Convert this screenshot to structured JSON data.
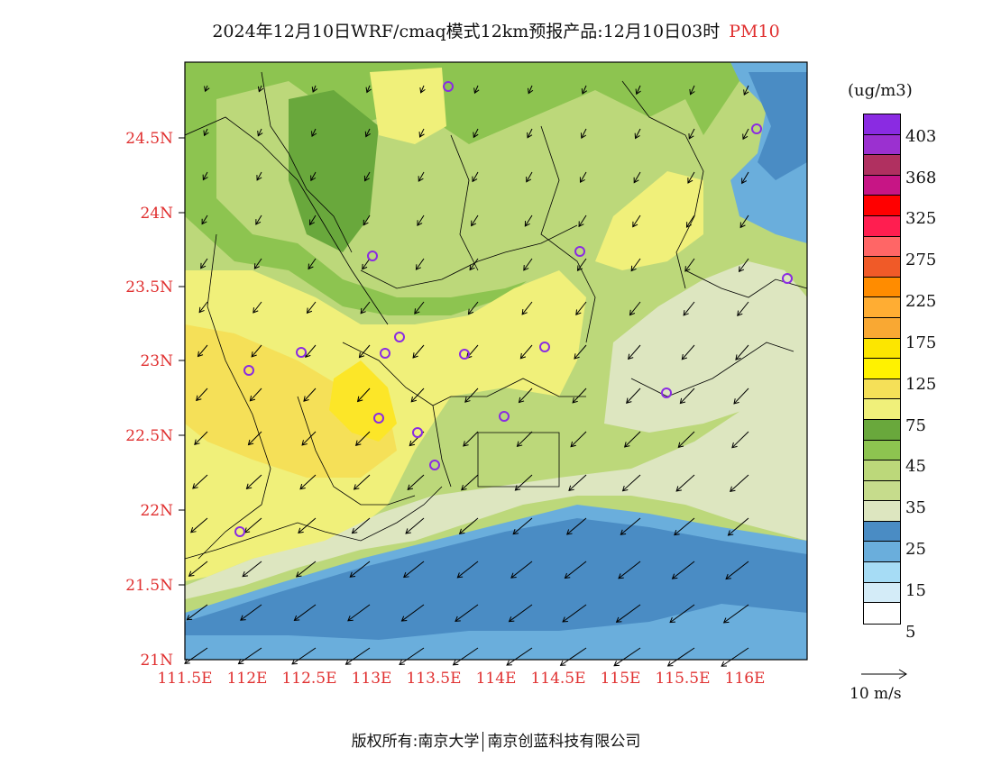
{
  "title": {
    "main": "2024年12月10日WRF/cmaq模式12km预报产品:12月10日03时",
    "pollutant": "PM10"
  },
  "map": {
    "lat_ticks": [
      "24.5N",
      "24N",
      "23.5N",
      "23N",
      "22.5N",
      "22N",
      "21.5N",
      "21N"
    ],
    "lon_ticks": [
      "111.5E",
      "112E",
      "112.5E",
      "113E",
      "113.5E",
      "114E",
      "114.5E",
      "115E",
      "115.5E",
      "116E"
    ],
    "lat_range": [
      21.0,
      25.0
    ],
    "lon_range": [
      111.5,
      116.5
    ],
    "colors": {
      "sea_deep": "#4a8cc4",
      "sea_light": "#6aaedc",
      "c25": "#dde6c0",
      "c35": "#bcd87a",
      "c45": "#8dc450",
      "c45dark": "#69a83c",
      "c75": "#f0f07a",
      "c100": "#f5e058",
      "c125": "#fce628"
    },
    "arrow_color": "#000000",
    "station_color": "#8a2be2"
  },
  "legend": {
    "unit": "(ug/m3)",
    "labels": [
      "403",
      "368",
      "325",
      "275",
      "225",
      "175",
      "125",
      "75",
      "45",
      "35",
      "25",
      "15",
      "5"
    ],
    "colors": [
      "#8a2be2",
      "#9b30d0",
      "#b03060",
      "#c71585",
      "#ff0000",
      "#ff1e50",
      "#ff6666",
      "#f05a28",
      "#ff8c00",
      "#ffad33",
      "#f9a833",
      "#fce600",
      "#fff200",
      "#f5e058",
      "#f0f07a",
      "#69a83c",
      "#8dc450",
      "#bcd87a",
      "#c6dc8c",
      "#dde6c0",
      "#4a8cc4",
      "#6aaedc",
      "#a6dcf5",
      "#d4ecf8",
      "#ffffff"
    ]
  },
  "wind_reference": {
    "label": "10 m/s"
  },
  "footer": {
    "copyright": "版权所有:南京大学",
    "partner": "南京创蓝科技有限公司"
  }
}
